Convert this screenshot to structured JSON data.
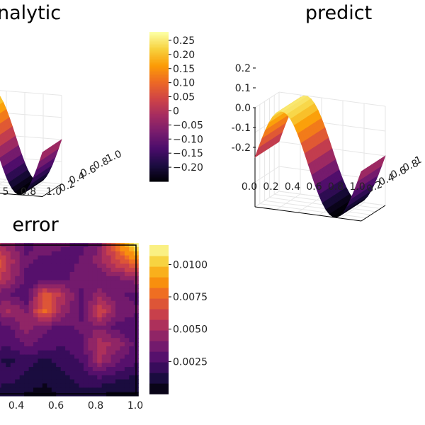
{
  "colors": {
    "inferno": [
      "#000004",
      "#1b0c41",
      "#4a0c6b",
      "#781c6d",
      "#a52c60",
      "#cf4446",
      "#ed6925",
      "#fb9b06",
      "#f7d13d",
      "#fcffa4"
    ]
  },
  "chart_data": [
    {
      "id": "analytic",
      "type": "surface",
      "title": "nalytic",
      "x_ticks": [
        "5",
        "0.8",
        "1.0"
      ],
      "y_ticks": [
        "0.2",
        "0.4",
        "0.6",
        "0.8",
        "1.0"
      ],
      "z_ticks": [],
      "colorbar_ticks": [
        {
          "value": 0.25,
          "label": "0.25"
        },
        {
          "value": 0.2,
          "label": "0.20"
        },
        {
          "value": 0.15,
          "label": "0.15"
        },
        {
          "value": 0.1,
          "label": "0.10"
        },
        {
          "value": 0.05,
          "label": "0.05"
        },
        {
          "value": 0,
          "label": "0"
        },
        {
          "value": -0.05,
          "label": "−0.05"
        },
        {
          "value": -0.1,
          "label": "−0.10"
        },
        {
          "value": -0.15,
          "label": "−0.15"
        },
        {
          "value": -0.2,
          "label": "−0.20"
        }
      ],
      "colorbar_range": [
        -0.25,
        0.28
      ],
      "surface": "0.25 * sin(2*pi*x)"
    },
    {
      "id": "predict",
      "type": "surface",
      "title": "predict",
      "x_ticks": [
        "0.0",
        "0.2",
        "0.4",
        "0.6",
        "0.8",
        "1.0"
      ],
      "y_ticks": [
        "0.2",
        "0.4",
        "0.6",
        "0.8",
        "1"
      ],
      "z_ticks": [
        "0.2",
        "0.1",
        "0.0",
        "-0.1",
        "-0.2"
      ],
      "z_range": [
        -0.25,
        0.25
      ],
      "surface": "0.25 * sin(2*pi*x)"
    },
    {
      "id": "error",
      "type": "heatmap",
      "title": "error",
      "x_ticks": [
        "0.4",
        "0.6",
        "0.8",
        "1.0"
      ],
      "colorbar_ticks": [
        {
          "value": 0.01,
          "label": "0.0100"
        },
        {
          "value": 0.0075,
          "label": "0.0075"
        },
        {
          "value": 0.005,
          "label": "0.0050"
        },
        {
          "value": 0.0025,
          "label": "0.0025"
        }
      ],
      "colorbar_range": [
        0.0,
        0.0115
      ],
      "grid_values": [
        [
          0.0035,
          0.006,
          0.0045,
          0.003,
          0.004,
          0.0035,
          0.003,
          0.004,
          0.008,
          0.0112
        ],
        [
          0.006,
          0.0085,
          0.0055,
          0.0035,
          0.003,
          0.0025,
          0.0035,
          0.0045,
          0.0065,
          0.008
        ],
        [
          0.0045,
          0.0065,
          0.005,
          0.003,
          0.0025,
          0.003,
          0.004,
          0.0035,
          0.004,
          0.0045
        ],
        [
          0.003,
          0.004,
          0.0035,
          0.0025,
          0.007,
          0.0055,
          0.003,
          0.0045,
          0.0035,
          0.003
        ],
        [
          0.004,
          0.0035,
          0.005,
          0.004,
          0.0075,
          0.0045,
          0.003,
          0.0065,
          0.004,
          0.0035
        ],
        [
          0.003,
          0.0025,
          0.003,
          0.0045,
          0.0035,
          0.003,
          0.0035,
          0.004,
          0.003,
          0.0025
        ],
        [
          0.0035,
          0.003,
          0.0025,
          0.0035,
          0.003,
          0.0025,
          0.003,
          0.0055,
          0.0045,
          0.003
        ],
        [
          0.0025,
          0.002,
          0.0015,
          0.002,
          0.0015,
          0.002,
          0.0025,
          0.005,
          0.0035,
          0.0025
        ],
        [
          0.003,
          0.0025,
          0.002,
          0.0015,
          0.001,
          0.0015,
          0.002,
          0.0025,
          0.002,
          0.0015
        ],
        [
          0.002,
          0.0015,
          0.001,
          0.0008,
          0.0005,
          0.001,
          0.0015,
          0.001,
          0.0005,
          0.0008
        ]
      ]
    }
  ]
}
